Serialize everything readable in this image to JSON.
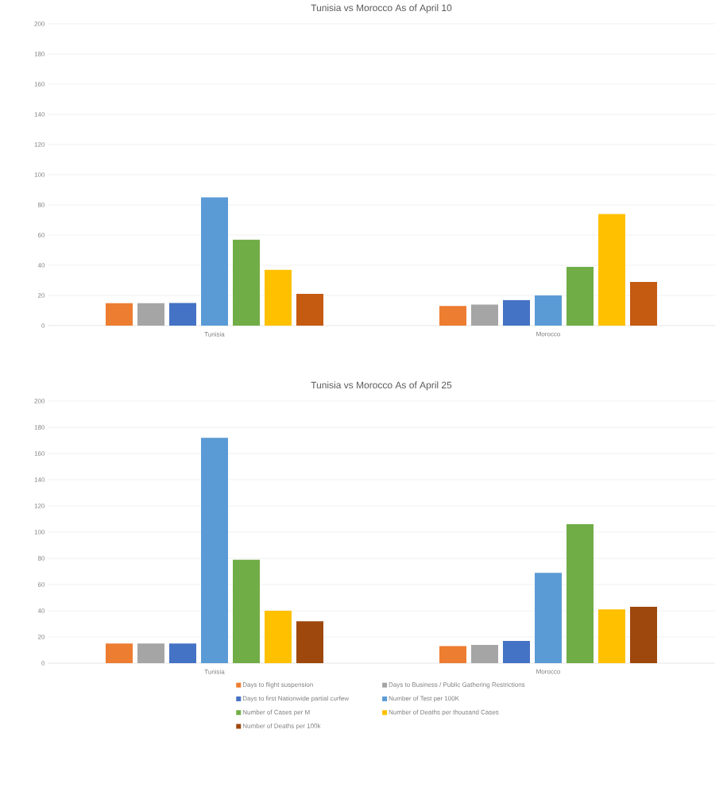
{
  "chart_data": [
    {
      "type": "bar",
      "title": "Tunisia vs Morocco As of April 10",
      "categories": [
        "Tunisia",
        "Morocco"
      ],
      "ylim": [
        0,
        200
      ],
      "yticks": [
        0,
        20,
        40,
        60,
        80,
        100,
        120,
        140,
        160,
        180,
        200
      ],
      "grid": "y",
      "legend": false,
      "series": [
        {
          "color": "#ed7d31",
          "values": [
            15,
            13
          ]
        },
        {
          "color": "#a5a5a5",
          "values": [
            15,
            14
          ]
        },
        {
          "color": "#4472c4",
          "values": [
            15,
            17
          ]
        },
        {
          "color": "#5b9bd5",
          "values": [
            85,
            20
          ]
        },
        {
          "color": "#70ad47",
          "values": [
            57,
            39
          ]
        },
        {
          "color": "#ffc000",
          "values": [
            37,
            74
          ]
        },
        {
          "color": "#c55a11",
          "values": [
            21,
            29
          ]
        }
      ]
    },
    {
      "type": "bar",
      "title": "Tunisia vs Morocco As of April 25",
      "categories": [
        "Tunisia",
        "Morocco"
      ],
      "ylim": [
        0,
        200
      ],
      "yticks": [
        0,
        20,
        40,
        60,
        80,
        100,
        120,
        140,
        160,
        180,
        200
      ],
      "grid": "y",
      "legend": "bottom",
      "series": [
        {
          "name": "Days to flight suspension",
          "color": "#ed7d31",
          "values": [
            15,
            13
          ]
        },
        {
          "name": "Days to Business / Public Gathering Restrictions",
          "color": "#a5a5a5",
          "values": [
            15,
            14
          ]
        },
        {
          "name": "Days to first Nationwide partial curfew",
          "color": "#4472c4",
          "values": [
            15,
            17
          ]
        },
        {
          "name": "Number of Test per 100K",
          "color": "#5b9bd5",
          "values": [
            172,
            69
          ]
        },
        {
          "name": "Number of Cases per M",
          "color": "#70ad47",
          "values": [
            79,
            106
          ]
        },
        {
          "name": "Number of Deaths per thousand Cases",
          "color": "#ffc000",
          "values": [
            40,
            41
          ]
        },
        {
          "name": "Number of Deaths per 100k",
          "color": "#9e480e",
          "values": [
            32,
            43
          ]
        }
      ]
    }
  ]
}
